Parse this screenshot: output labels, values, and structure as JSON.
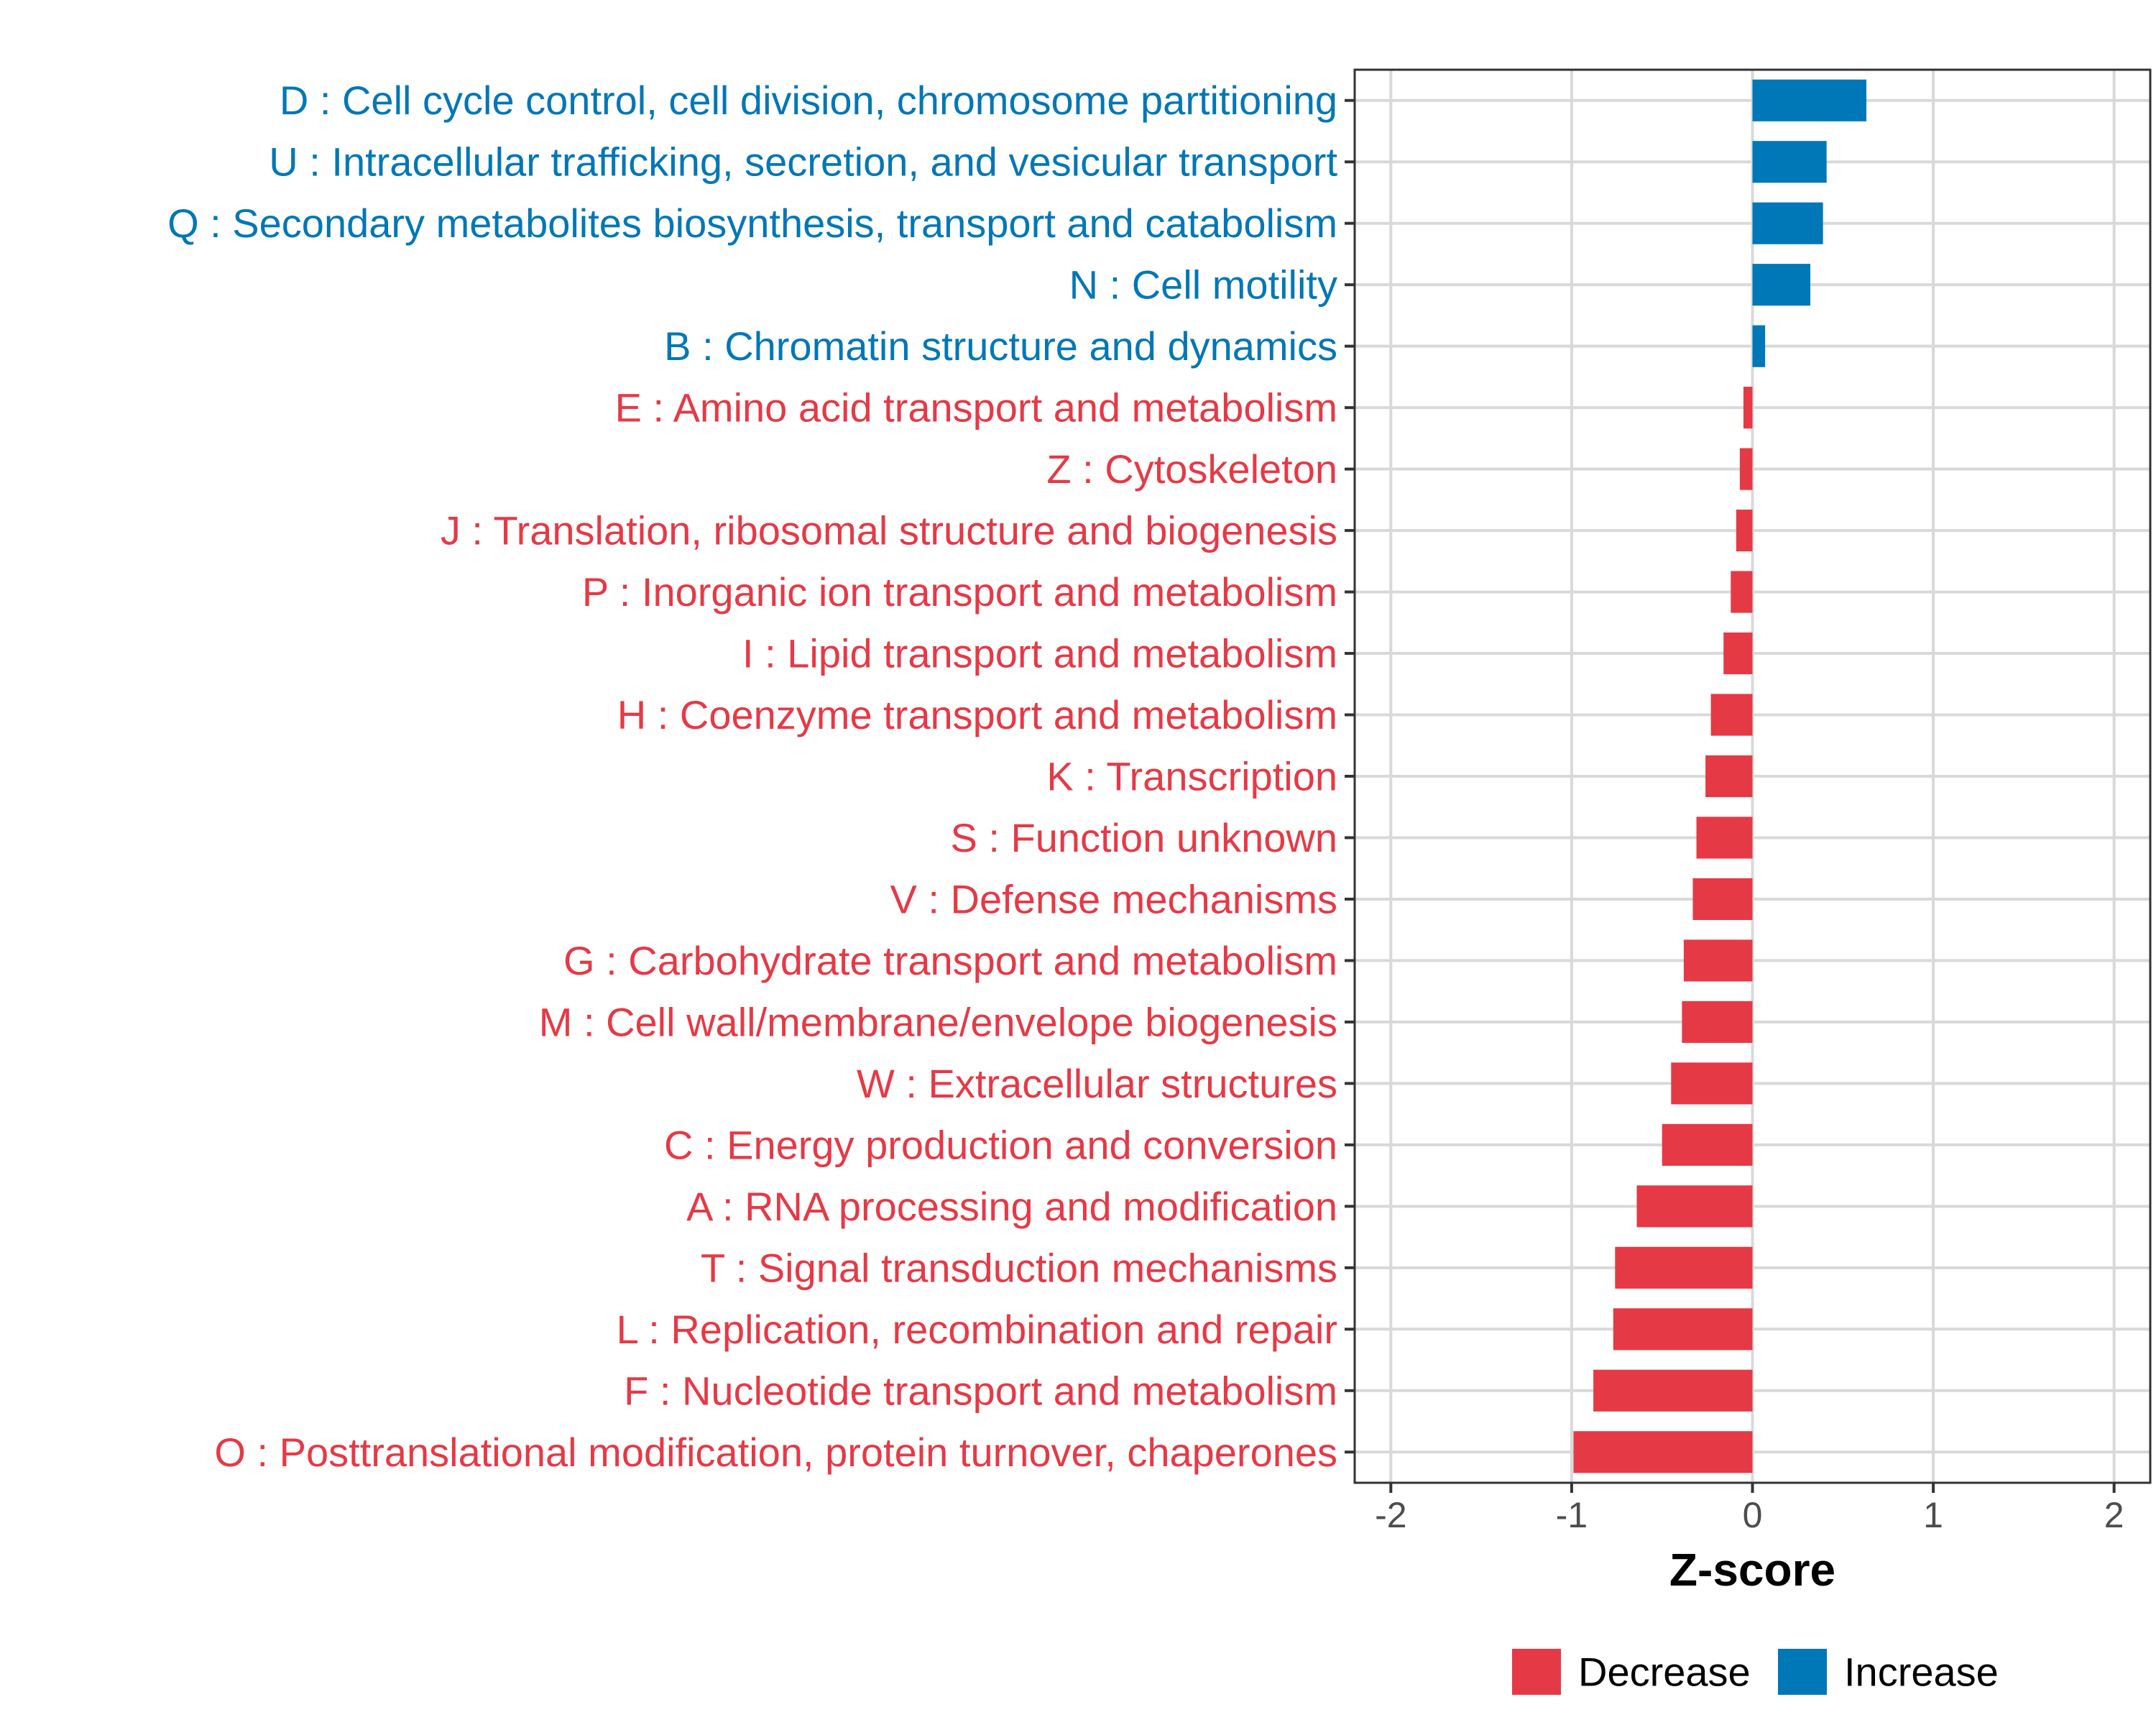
{
  "chart_data": {
    "type": "bar",
    "orientation": "horizontal",
    "title": "",
    "xlabel": "Z-score",
    "ylabel": "",
    "xlim": [
      -2.2,
      2.2
    ],
    "xticks": [
      -2,
      -1,
      0,
      1,
      2
    ],
    "xtick_labels": [
      "-2",
      "-1",
      "0",
      "1",
      "2"
    ],
    "grid": true,
    "colors": {
      "Decrease": "#E63946",
      "Increase": "#0077B6"
    },
    "legend": {
      "placement": "bottom-center",
      "entries": [
        {
          "label": "Decrease",
          "color": "#E63946"
        },
        {
          "label": "Increase",
          "color": "#0077B6"
        }
      ]
    },
    "categories": [
      "D : Cell cycle control, cell division, chromosome partitioning",
      "U : Intracellular trafficking, secretion, and vesicular transport",
      "Q : Secondary metabolites biosynthesis, transport and catabolism",
      "N : Cell motility",
      "B : Chromatin structure and dynamics",
      "E : Amino acid transport and metabolism",
      "Z : Cytoskeleton",
      "J : Translation, ribosomal structure and biogenesis",
      "P : Inorganic ion transport and metabolism",
      "I : Lipid transport and metabolism",
      "H : Coenzyme transport and metabolism",
      "K : Transcription",
      "S : Function unknown",
      "V : Defense mechanisms",
      "G : Carbohydrate transport and metabolism",
      "M : Cell wall/membrane/envelope biogenesis",
      "W : Extracellular structures",
      "C : Energy production and conversion",
      "A : RNA processing and modification",
      "T : Signal transduction mechanisms",
      "L : Replication, recombination and repair",
      "F : Nucleotide transport and metabolism",
      "O : Posttranslational modification, protein turnover, chaperones"
    ],
    "values": [
      0.63,
      0.41,
      0.39,
      0.32,
      0.07,
      -0.05,
      -0.07,
      -0.09,
      -0.12,
      -0.16,
      -0.23,
      -0.26,
      -0.31,
      -0.33,
      -0.38,
      -0.39,
      -0.45,
      -0.5,
      -0.64,
      -0.76,
      -0.77,
      -0.88,
      -0.99
    ],
    "direction": [
      "Increase",
      "Increase",
      "Increase",
      "Increase",
      "Increase",
      "Decrease",
      "Decrease",
      "Decrease",
      "Decrease",
      "Decrease",
      "Decrease",
      "Decrease",
      "Decrease",
      "Decrease",
      "Decrease",
      "Decrease",
      "Decrease",
      "Decrease",
      "Decrease",
      "Decrease",
      "Decrease",
      "Decrease",
      "Decrease"
    ]
  }
}
